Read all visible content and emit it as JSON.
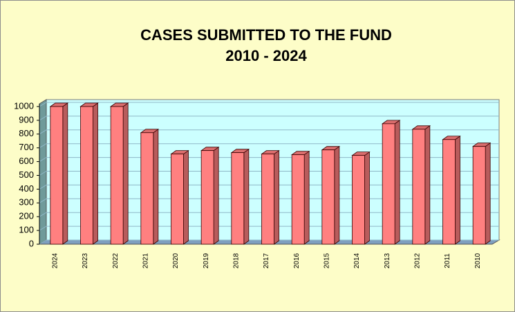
{
  "chart_data": {
    "type": "bar3d",
    "title": "CASES SUBMITTED TO THE FUND",
    "subtitle": "2010 - 2024",
    "categories": [
      "2024",
      "2023",
      "2022",
      "2021",
      "2020",
      "2019",
      "2018",
      "2017",
      "2016",
      "2015",
      "2014",
      "2013",
      "2012",
      "2011",
      "2010"
    ],
    "values": [
      1000,
      1000,
      1000,
      810,
      655,
      680,
      665,
      655,
      650,
      685,
      645,
      875,
      835,
      760,
      710
    ],
    "color": "#ff8080",
    "ylim": [
      0,
      1000
    ],
    "yticks": [
      0,
      100,
      200,
      300,
      400,
      500,
      600,
      700,
      800,
      900,
      1000
    ],
    "grid": true
  }
}
